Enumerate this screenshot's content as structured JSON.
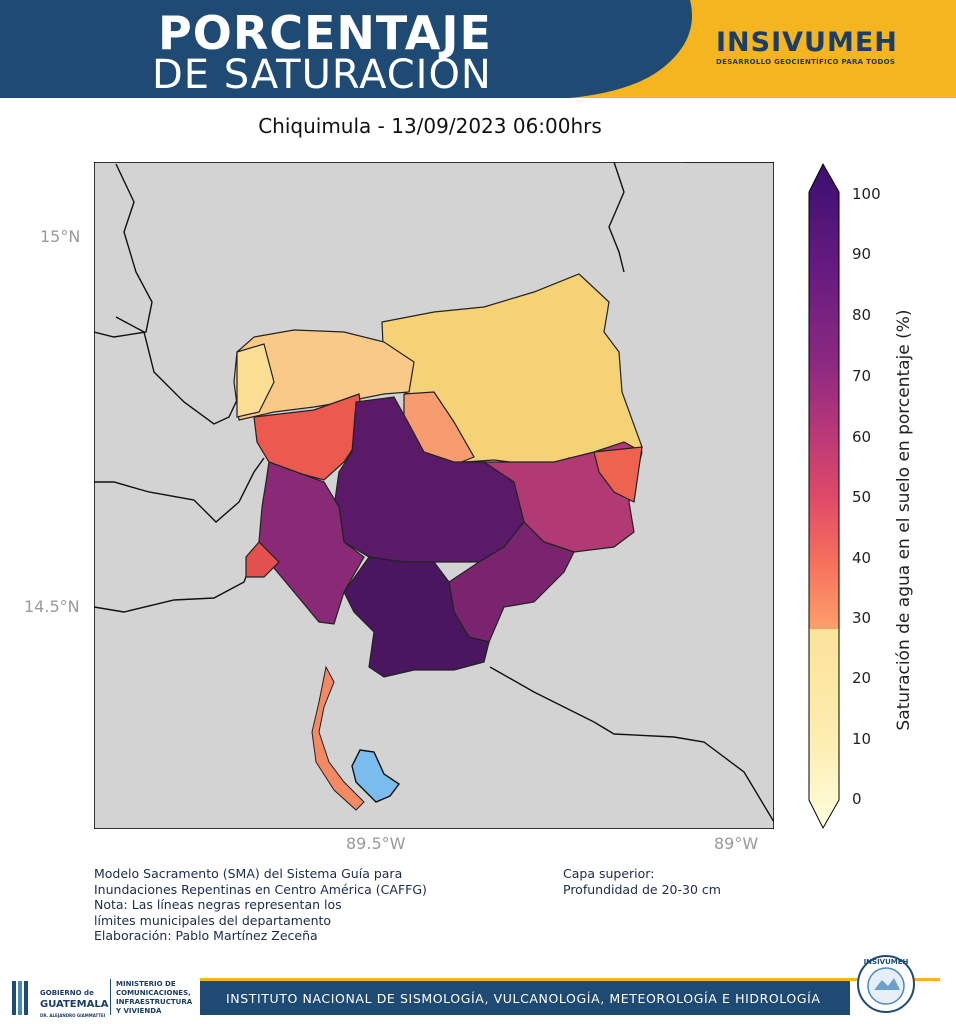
{
  "header": {
    "title_line1": "PORCENTAJE",
    "title_line2": "DE SATURACIÓN",
    "brand": "INSIVUMEH",
    "brand_tagline": "DESARROLLO GEOCIENTÍFICO PARA TODOS",
    "colors": {
      "navy": "#1e4a73",
      "gold": "#f4b51f"
    }
  },
  "map": {
    "subtitle": "Chiquimula - 13/09/2023  06:00hrs",
    "lat_labels": [
      "15°N",
      "14.5°N"
    ],
    "lon_labels": [
      "89.5°W",
      "89°W"
    ],
    "background_color": "#d3d3d3"
  },
  "colorbar": {
    "label": "Saturación de agua en el suelo en porcentaje (%)",
    "ticks": [
      "100",
      "90",
      "80",
      "70",
      "60",
      "50",
      "40",
      "30",
      "20",
      "10",
      "0"
    ],
    "range": [
      0,
      100
    ],
    "colormap": "magma_r"
  },
  "notes": {
    "left": "Modelo Sacramento (SMA) del Sistema Guía para\nInundaciones Repentinas en Centro América (CAFFG)\nNota: Las líneas negras representan los\nlímites municipales del departamento\nElaboración: Pablo Martínez Zeceña",
    "right": "Capa superior:\nProfundidad de 20-30 cm"
  },
  "footer": {
    "gob_line1": "GOBIERNO de",
    "gob_line2": "GUATEMALA",
    "gob_line3": "DR. ALEJANDRO GIAMMATTEI",
    "ministry": "MINISTERIO DE\nCOMUNICACIONES,\nINFRAESTRUCTURA\nY VIVIENDA",
    "institute": "INSTITUTO NACIONAL DE SISMOLOGÍA, VULCANOLOGÍA, METEOROLOGÍA E HIDROLOGÍA",
    "seal_text": "INSIVUMEH"
  }
}
